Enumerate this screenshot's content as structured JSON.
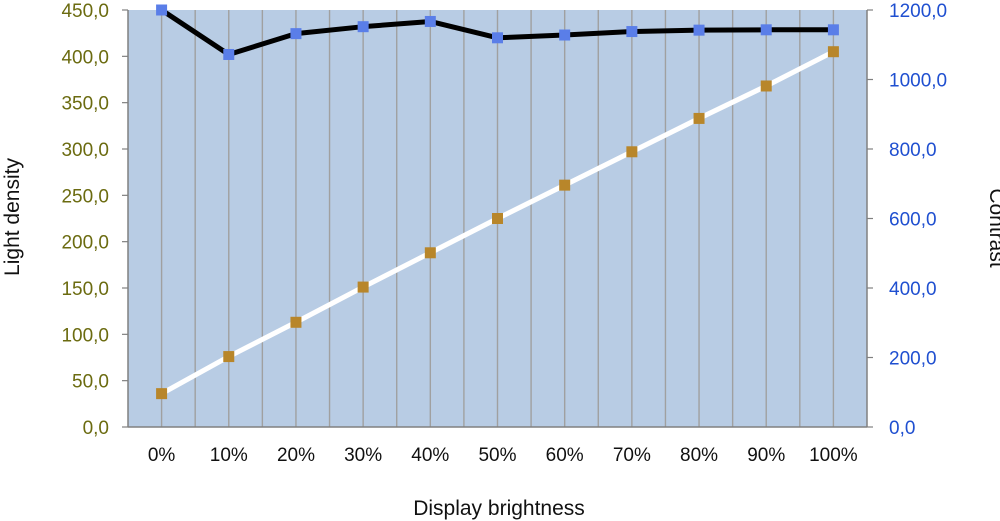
{
  "chart_data": {
    "type": "line",
    "title": "",
    "xlabel": "Display brightness",
    "ylabel": "Light density",
    "y2label": "Contrast",
    "categories": [
      "0%",
      "10%",
      "20%",
      "30%",
      "40%",
      "50%",
      "60%",
      "70%",
      "80%",
      "90%",
      "100%"
    ],
    "ylim": [
      0,
      450
    ],
    "y2lim": [
      0,
      1200
    ],
    "yticks": [
      "0,0",
      "50,0",
      "100,0",
      "150,0",
      "200,0",
      "250,0",
      "300,0",
      "350,0",
      "400,0",
      "450,0"
    ],
    "y2ticks": [
      "0,0",
      "200,0",
      "400,0",
      "600,0",
      "800,0",
      "1000,0",
      "1200,0"
    ],
    "grid": "vertical",
    "plot_background": "#b8cce4",
    "series": [
      {
        "name": "",
        "axis": "left",
        "values": [
          36,
          76,
          113,
          151,
          188,
          225,
          261,
          297,
          333,
          368,
          405
        ],
        "line_color": "#ffffff",
        "marker_color": "#b8862a"
      },
      {
        "name": "",
        "axis": "right",
        "values": [
          1200,
          1072,
          1132,
          1152,
          1167,
          1120,
          1128,
          1138,
          1142,
          1143,
          1143
        ],
        "line_color": "#000000",
        "marker_color": "#5a7ee8"
      }
    ]
  }
}
